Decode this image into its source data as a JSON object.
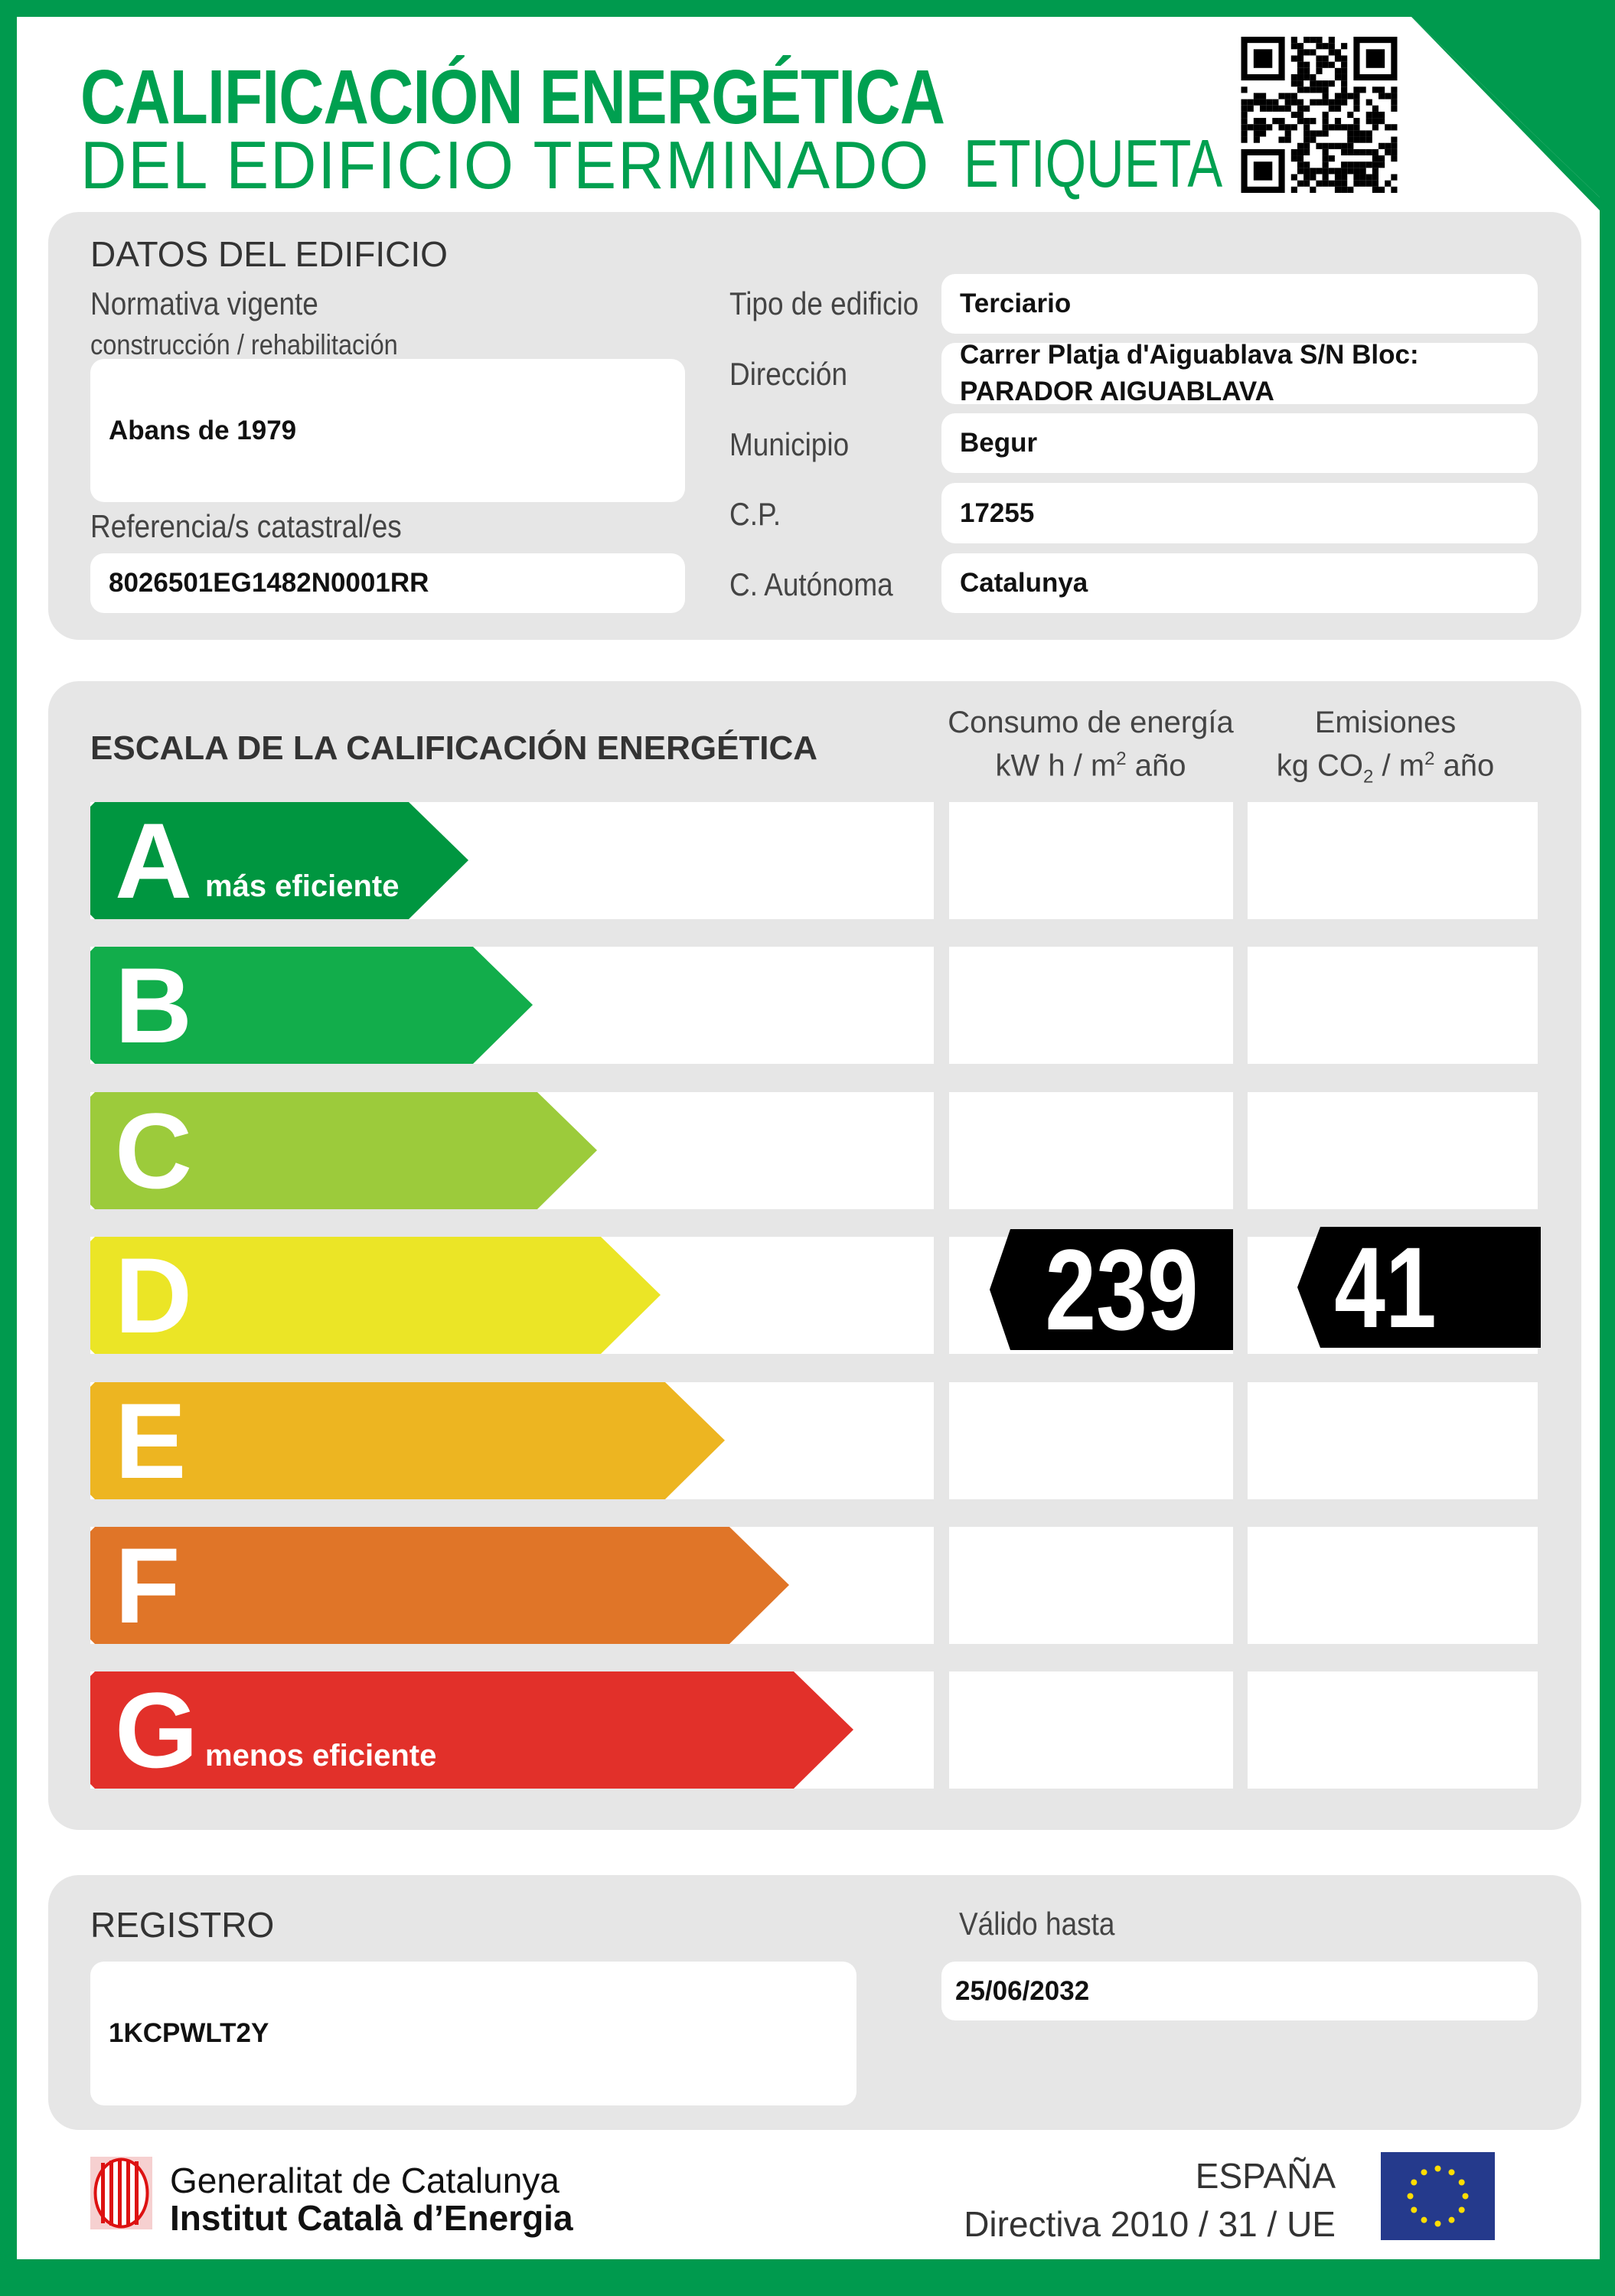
{
  "header": {
    "title_line1": "CALIFICACIÓN ENERGÉTICA",
    "title_line2": "DEL EDIFICIO TERMINADO",
    "etiqueta": "ETIQUETA",
    "brand_color": "#009a4e"
  },
  "datos": {
    "section_title": "DATOS DEL EDIFICIO",
    "normativa_label_1": "Normativa vigente",
    "normativa_label_2": "construcción / rehabilitación",
    "normativa_value": "Abans de 1979",
    "referencia_label": "Referencia/s catastral/es",
    "referencia_value": "8026501EG1482N0001RR",
    "fields": [
      {
        "label": "Tipo de edificio",
        "value": "Terciario"
      },
      {
        "label": "Dirección",
        "value": "Carrer Platja d'Aiguablava S/N Bloc:",
        "value2": "PARADOR AIGUABLAVA"
      },
      {
        "label": "Municipio",
        "value": "Begur"
      },
      {
        "label": "C.P.",
        "value": "17255"
      },
      {
        "label": "C. Autónoma",
        "value": "Catalunya"
      }
    ]
  },
  "escala": {
    "title": "ESCALA DE LA CALIFICACIÓN ENERGÉTICA",
    "consumo_header": "Consumo de energía",
    "consumo_unit_a": "kW h  / m",
    "consumo_unit_sup": "2",
    "consumo_unit_b": " año",
    "emisiones_header": "Emisiones",
    "emisiones_unit_a": "kg CO",
    "emisiones_unit_sub": "2",
    "emisiones_unit_b": "  / m",
    "emisiones_unit_sup": "2",
    "emisiones_unit_c": " año",
    "ratings": [
      {
        "letter": "A",
        "label": "más eficiente",
        "color": "#009640"
      },
      {
        "letter": "B",
        "label": "",
        "color": "#12ad4b"
      },
      {
        "letter": "C",
        "label": "",
        "color": "#9ccb3b"
      },
      {
        "letter": "D",
        "label": "",
        "color": "#ebe526"
      },
      {
        "letter": "E",
        "label": "",
        "color": "#edb521"
      },
      {
        "letter": "F",
        "label": "",
        "color": "#e07528"
      },
      {
        "letter": "G",
        "label": "menos eficiente",
        "color": "#e2302a"
      }
    ],
    "selected_consumo_rating": "D",
    "selected_emisiones_rating": "D",
    "consumo_value": "239",
    "emisiones_value": "41"
  },
  "registro": {
    "label": "REGISTRO",
    "value": "1KCPWLT2Y",
    "valido_label": "Válido hasta",
    "valido_value": "25/06/2032"
  },
  "footer": {
    "org_line1": "Generalitat de Catalunya",
    "org_line2": "Institut Català d’Energia",
    "country": "ESPAÑA",
    "directive": "Directiva 2010 / 31 / UE"
  }
}
